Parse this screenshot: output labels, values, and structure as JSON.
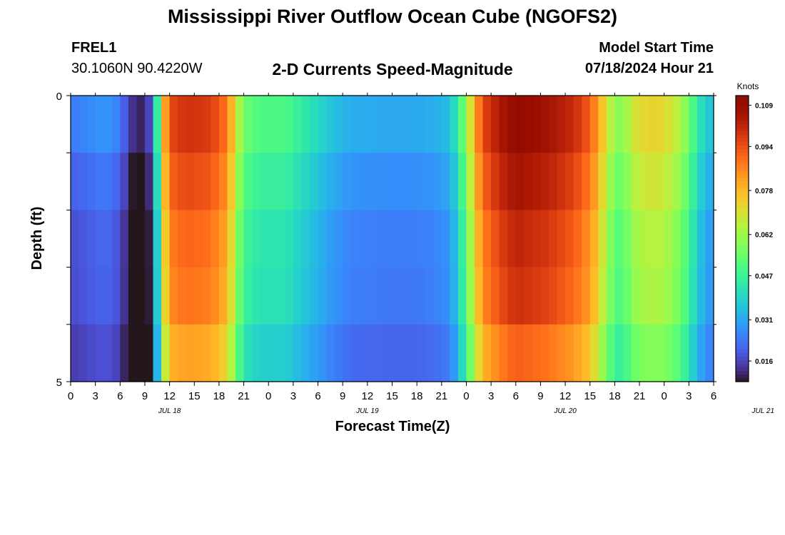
{
  "page": {
    "title_top": "Mississippi River Outflow Ocean Cube (NGOFS2)",
    "title_bottom": "Mississippi River Outflow Ocean Cube (NGOFS2)",
    "station_id": "FREL1",
    "station_coords": "30.1060N  90.4220W",
    "plot_title": "2-D Currents Speed-Magnitude",
    "start_label": "Model Start Time",
    "start_value": "07/18/2024 Hour 21"
  },
  "chart_data": {
    "type": "heatmap",
    "xlabel": "Forecast Time(Z)",
    "ylabel": "Depth (ft)",
    "colorbar_label": "Knots",
    "colormap": "turbo",
    "colorbar_ticks": [
      0.016,
      0.031,
      0.047,
      0.062,
      0.078,
      0.094,
      0.109
    ],
    "x_tick_labels": [
      "0",
      "3",
      "6",
      "9",
      "12",
      "15",
      "18",
      "21",
      "0",
      "3",
      "6",
      "9",
      "12",
      "15",
      "18",
      "21",
      "0",
      "3",
      "6",
      "9",
      "12",
      "15",
      "18",
      "21",
      "0",
      "3",
      "6"
    ],
    "x_date_labels": [
      {
        "label": "JUL 18",
        "hour": 12
      },
      {
        "label": "JUL 19",
        "hour": 36
      },
      {
        "label": "JUL 20",
        "hour": 60
      },
      {
        "label": "JUL 21",
        "hour": 84
      }
    ],
    "x_range_hours": [
      0,
      78
    ],
    "y_tick_labels": [
      {
        "label": "0",
        "depth": 0
      },
      {
        "label": "5",
        "depth": 5
      }
    ],
    "y_range_ft": [
      0,
      5
    ],
    "depth_layers": 5,
    "vmin": 0.0085,
    "vmax": 0.1125,
    "speed_profile_knots": [
      [
        0,
        0.024
      ],
      [
        1,
        0.025
      ],
      [
        2,
        0.026
      ],
      [
        3,
        0.027
      ],
      [
        4,
        0.028
      ],
      [
        5,
        0.027
      ],
      [
        6,
        0.024
      ],
      [
        7,
        0.016
      ],
      [
        8,
        0.01
      ],
      [
        9,
        0.012
      ],
      [
        10,
        0.02
      ],
      [
        10.5,
        0.045
      ],
      [
        11,
        0.07
      ],
      [
        12,
        0.095
      ],
      [
        14,
        0.099
      ],
      [
        17,
        0.097
      ],
      [
        19,
        0.088
      ],
      [
        20,
        0.07
      ],
      [
        21,
        0.055
      ],
      [
        23,
        0.05
      ],
      [
        26,
        0.05
      ],
      [
        28,
        0.045
      ],
      [
        30,
        0.04
      ],
      [
        32,
        0.035
      ],
      [
        34,
        0.032
      ],
      [
        38,
        0.031
      ],
      [
        42,
        0.031
      ],
      [
        44,
        0.032
      ],
      [
        46,
        0.035
      ],
      [
        47,
        0.045
      ],
      [
        48,
        0.06
      ],
      [
        49,
        0.08
      ],
      [
        50,
        0.095
      ],
      [
        52,
        0.104
      ],
      [
        54,
        0.11
      ],
      [
        58,
        0.106
      ],
      [
        61,
        0.1
      ],
      [
        63,
        0.092
      ],
      [
        64,
        0.082
      ],
      [
        65,
        0.07
      ],
      [
        66,
        0.06
      ],
      [
        67,
        0.058
      ],
      [
        68,
        0.068
      ],
      [
        70,
        0.073
      ],
      [
        72,
        0.072
      ],
      [
        74,
        0.064
      ],
      [
        75,
        0.055
      ],
      [
        76,
        0.045
      ],
      [
        77,
        0.038
      ],
      [
        78,
        0.035
      ]
    ],
    "layer_factor": [
      1.0,
      1.0,
      0.98,
      0.96,
      0.9
    ],
    "layer_offset_knots": [
      0.0,
      -0.004,
      -0.006,
      -0.006,
      -0.007
    ]
  }
}
